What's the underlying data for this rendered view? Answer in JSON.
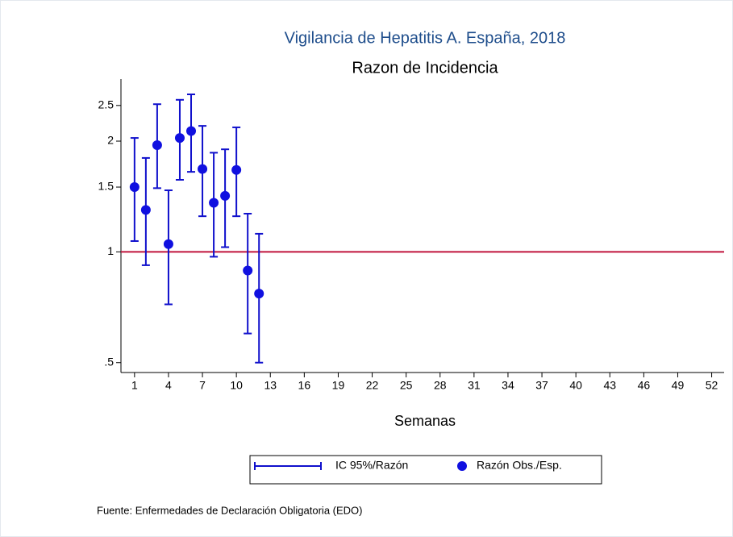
{
  "chart_data": {
    "type": "scatter",
    "title": "Vigilancia de Hepatitis A. España, 2018",
    "subtitle": "Razon de Incidencia",
    "x_label": "Semanas",
    "source": "Fuente: Enfermedades de Declaración Obligatoria (EDO)",
    "x": [
      1,
      2,
      3,
      4,
      5,
      6,
      7,
      8,
      9,
      10,
      11,
      12
    ],
    "series": [
      {
        "name": "IC 95%/Razón",
        "color": "#1010cc",
        "lower": [
          1.07,
          0.92,
          1.49,
          0.72,
          1.57,
          1.65,
          1.25,
          0.97,
          1.03,
          1.25,
          0.6,
          0.5
        ],
        "upper": [
          2.04,
          1.8,
          2.52,
          1.47,
          2.59,
          2.68,
          2.2,
          1.86,
          1.9,
          2.18,
          1.27,
          1.12
        ]
      },
      {
        "name": "Razón Obs./Esp.",
        "color": "#1010e0",
        "values": [
          1.5,
          1.3,
          1.95,
          1.05,
          2.04,
          2.13,
          1.68,
          1.36,
          1.42,
          1.67,
          0.89,
          0.77
        ]
      }
    ],
    "reference_line": {
      "value": 1,
      "color": "#c0143c"
    },
    "yscale": "log",
    "xlim": [
      -0.2,
      53.1
    ],
    "xticks": [
      1,
      4,
      7,
      10,
      13,
      16,
      19,
      22,
      25,
      28,
      31,
      34,
      37,
      40,
      43,
      46,
      49,
      52
    ],
    "ylim": [
      0.47,
      2.95
    ],
    "yticks": [
      {
        "value": 0.5,
        "label": ".5"
      },
      1,
      1.5,
      2,
      2.5
    ]
  }
}
